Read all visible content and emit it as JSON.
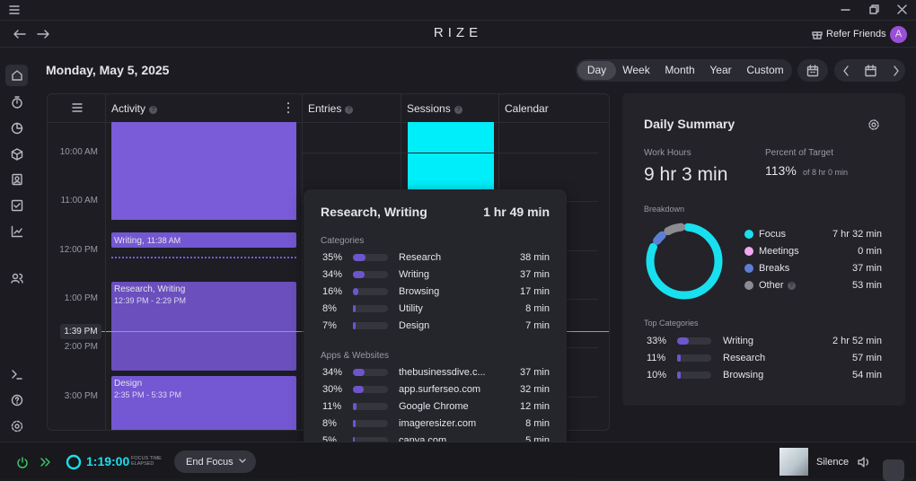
{
  "app": {
    "title": "RIZE",
    "refer": "Refer Friends",
    "avatar": "A"
  },
  "header": {
    "date": "Monday, May 5, 2025",
    "ranges": [
      "Day",
      "Week",
      "Month",
      "Year",
      "Custom"
    ]
  },
  "timeline": {
    "columns": [
      "Activity",
      "Entries",
      "Sessions",
      "Calendar"
    ],
    "times": [
      "10:00 AM",
      "11:00 AM",
      "12:00 PM",
      "1:00 PM",
      "2:00 PM",
      "3:00 PM"
    ],
    "now": "1:39 PM",
    "blocks": [
      {
        "title": "Writing,",
        "time": "11:38 AM"
      },
      {
        "title": "Research, Writing",
        "time": "12:39 PM - 2:29 PM"
      },
      {
        "title": "Design",
        "time": "2:35 PM - 5:33 PM"
      }
    ]
  },
  "tooltip": {
    "title": "Research, Writing",
    "total": "1 hr 49 min",
    "categories": {
      "label": "Categories",
      "names": [
        "Research",
        "Writing",
        "Browsing",
        "Utility",
        "Design"
      ],
      "values": [
        35,
        34,
        16,
        8,
        7
      ],
      "value_labels": [
        "35%",
        "34%",
        "16%",
        "8%",
        "7%"
      ],
      "times": [
        "38 min",
        "37 min",
        "17 min",
        "8 min",
        "7 min"
      ]
    },
    "apps": {
      "label": "Apps & Websites",
      "names": [
        "thebusinessdive.c...",
        "app.surferseo.com",
        "Google Chrome",
        "imageresizer.com",
        "canva.com"
      ],
      "values": [
        34,
        30,
        11,
        8,
        5
      ],
      "value_labels": [
        "34%",
        "30%",
        "11%",
        "8%",
        "5%"
      ],
      "times": [
        "37 min",
        "32 min",
        "12 min",
        "8 min",
        "5 min"
      ]
    }
  },
  "summary": {
    "title": "Daily Summary",
    "work_hours_label": "Work Hours",
    "work_hours": "9 hr 3 min",
    "percent_label": "Percent of Target",
    "percent": "113%",
    "target": "of 8 hr 0 min",
    "breakdown": {
      "label": "Breakdown",
      "names": [
        "Focus",
        "Meetings",
        "Breaks",
        "Other"
      ],
      "colors": [
        "#18e0ee",
        "#f2a8f0",
        "#5b7fd6",
        "#8b8b92"
      ],
      "values": [
        452,
        0,
        37,
        53
      ],
      "value_labels": [
        "7 hr 32 min",
        "0 min",
        "37 min",
        "53 min"
      ]
    },
    "top": {
      "label": "Top Categories",
      "names": [
        "Writing",
        "Research",
        "Browsing"
      ],
      "values": [
        33,
        11,
        10
      ],
      "value_labels": [
        "33%",
        "11%",
        "10%"
      ],
      "times": [
        "2 hr 52 min",
        "57 min",
        "54 min"
      ]
    }
  },
  "footer": {
    "timer": "1:19:00",
    "timer_label": "FOCUS TIME ELAPSED",
    "end": "End Focus",
    "sound": "Silence"
  }
}
